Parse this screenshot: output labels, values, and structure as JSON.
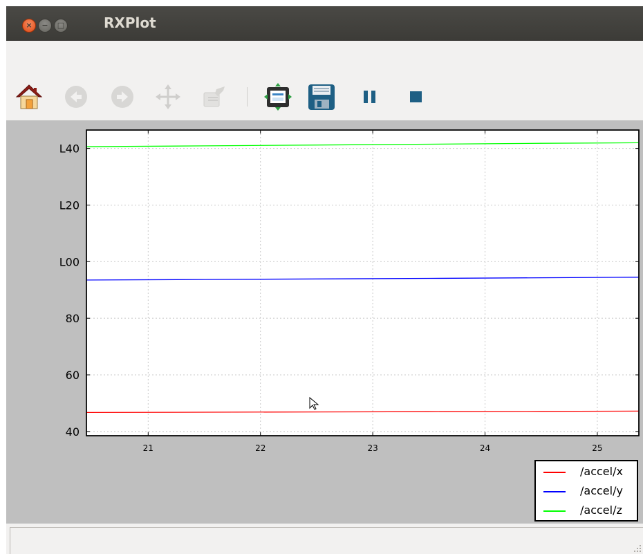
{
  "window": {
    "title": "RXPlot",
    "controls": {
      "close": "×",
      "minimize": "−",
      "maximize": "□"
    }
  },
  "toolbar": {
    "buttons": [
      {
        "name": "home-button",
        "icon": "home-icon",
        "enabled": true
      },
      {
        "name": "back-button",
        "icon": "arrow-left-icon",
        "enabled": false
      },
      {
        "name": "forward-button",
        "icon": "arrow-right-icon",
        "enabled": false
      },
      {
        "name": "pan-button",
        "icon": "move-icon",
        "enabled": false
      },
      {
        "name": "zoom-button",
        "icon": "zoom-rect-icon",
        "enabled": false
      },
      {
        "name": "configure-subplots-button",
        "icon": "subplots-icon",
        "enabled": true
      },
      {
        "name": "save-button",
        "icon": "floppy-disk-icon",
        "enabled": true
      },
      {
        "name": "pause-button",
        "icon": "pause-icon",
        "enabled": true
      },
      {
        "name": "stop-button",
        "icon": "stop-icon",
        "enabled": true
      }
    ]
  },
  "chart_data": {
    "type": "line",
    "title": "",
    "xlabel": "",
    "ylabel": "",
    "xlim": [
      20.45,
      25.37
    ],
    "ylim": [
      38.5,
      146.5
    ],
    "xticks": [
      21,
      22,
      23,
      24,
      25
    ],
    "xtick_labels": [
      "21",
      "22",
      "23",
      "24",
      "25"
    ],
    "yticks": [
      40,
      60,
      80,
      100,
      120,
      140
    ],
    "ytick_labels": [
      "40",
      "60",
      "80",
      "L00",
      "L20",
      "L40"
    ],
    "grid": true,
    "legend_position": "lower-right, below axes",
    "series": [
      {
        "name": "/accel/x",
        "color": "#ff0000",
        "x": [
          20.45,
          21.5,
          22.5,
          23.5,
          24.5,
          25.37
        ],
        "y": [
          46.7,
          46.8,
          46.9,
          47.0,
          47.1,
          47.2
        ]
      },
      {
        "name": "/accel/y",
        "color": "#0000ff",
        "x": [
          20.45,
          21.5,
          22.5,
          23.5,
          24.5,
          25.37
        ],
        "y": [
          93.5,
          93.7,
          93.9,
          94.1,
          94.3,
          94.5
        ]
      },
      {
        "name": "/accel/z",
        "color": "#00ff00",
        "x": [
          20.45,
          21.5,
          22.5,
          23.5,
          24.5,
          25.37
        ],
        "y": [
          140.6,
          140.9,
          141.2,
          141.5,
          141.8,
          142.0
        ]
      }
    ]
  },
  "colors": {
    "titlebar": "#3c3b37",
    "window_bg": "#f2f1f0",
    "plot_bg": "#bfbfbf",
    "icon_accent": "#1e5f84"
  }
}
